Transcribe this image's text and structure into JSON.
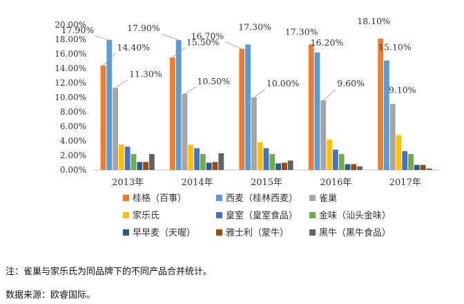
{
  "chart_data": {
    "type": "bar",
    "categories": [
      "2013年",
      "2014年",
      "2015年",
      "2016年",
      "2017年"
    ],
    "ylim": [
      0,
      20
    ],
    "y_ticks": [
      "0.00%",
      "2.00%",
      "4.00%",
      "6.00%",
      "8.00%",
      "10.00%",
      "12.00%",
      "14.00%",
      "16.00%",
      "18.00%",
      "20.00%"
    ],
    "legend_position": "bottom",
    "series": [
      {
        "name": "桂格（百事）",
        "color": "#ED7D31",
        "values": [
          14.4,
          15.5,
          16.7,
          17.3,
          18.1
        ]
      },
      {
        "name": "西麦（桂林西麦）",
        "color": "#5B9BD5",
        "values": [
          17.9,
          17.9,
          17.3,
          16.2,
          15.1
        ]
      },
      {
        "name": "雀巢",
        "color": "#A5A5A5",
        "values": [
          11.3,
          10.5,
          10.0,
          9.6,
          9.1
        ]
      },
      {
        "name": "家乐氏",
        "color": "#FFC000",
        "values": [
          3.5,
          3.5,
          3.8,
          4.2,
          4.8
        ]
      },
      {
        "name": "皇室（皇室食品）",
        "color": "#4472C4",
        "values": [
          3.2,
          3.0,
          3.0,
          2.8,
          2.6
        ]
      },
      {
        "name": "金味（汕头金味）",
        "color": "#70AD47",
        "values": [
          2.2,
          2.2,
          2.2,
          2.2,
          2.2
        ]
      },
      {
        "name": "早早麦（天喔）",
        "color": "#255E91",
        "values": [
          1.1,
          1.0,
          0.9,
          0.8,
          0.7
        ]
      },
      {
        "name": "雅士利（蒙牛）",
        "color": "#9E480E",
        "values": [
          1.1,
          1.1,
          1.0,
          0.8,
          0.7
        ]
      },
      {
        "name": "黑牛（黑牛食品）",
        "color": "#636363",
        "values": [
          2.2,
          2.3,
          1.3,
          0.5,
          0.2
        ]
      }
    ],
    "data_labels": [
      {
        "series": 1,
        "category": 0,
        "text": "17.90%"
      },
      {
        "series": 0,
        "category": 0,
        "text": "14.40%"
      },
      {
        "series": 2,
        "category": 0,
        "text": "11.30%"
      },
      {
        "series": 1,
        "category": 1,
        "text": "17.90%"
      },
      {
        "series": 0,
        "category": 1,
        "text": "15.50%"
      },
      {
        "series": 2,
        "category": 1,
        "text": "10.50%"
      },
      {
        "series": 1,
        "category": 2,
        "text": "17.30%"
      },
      {
        "series": 0,
        "category": 2,
        "text": "16.70%"
      },
      {
        "series": 2,
        "category": 2,
        "text": "10.00%"
      },
      {
        "series": 0,
        "category": 3,
        "text": "17.30%"
      },
      {
        "series": 1,
        "category": 3,
        "text": "16.20%"
      },
      {
        "series": 2,
        "category": 3,
        "text": "9.60%"
      },
      {
        "series": 0,
        "category": 4,
        "text": "18.10%"
      },
      {
        "series": 1,
        "category": 4,
        "text": "15.10%"
      },
      {
        "series": 2,
        "category": 4,
        "text": "9.10%"
      }
    ]
  },
  "notes": {
    "note": "注：雀巢与家乐氏为同品牌下的不同产品合并统计。",
    "source": "数据来源：欧睿国际。"
  }
}
